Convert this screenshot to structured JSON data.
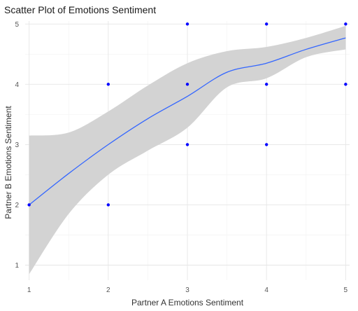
{
  "chart_data": {
    "type": "scatter",
    "title": "Scatter Plot of Emotions Sentiment",
    "xlabel": "Partner A Emotions Sentiment",
    "ylabel": "Partner B Emotions Sentiment",
    "xlim": [
      0.95,
      5.05
    ],
    "ylim": [
      0.75,
      5.05
    ],
    "x_ticks": [
      1,
      2,
      3,
      4,
      5
    ],
    "y_ticks": [
      1,
      2,
      3,
      4,
      5
    ],
    "x_tick_labels": [
      "1",
      "2",
      "3",
      "4",
      "5"
    ],
    "y_tick_labels": [
      "1",
      "2",
      "3",
      "4",
      "5"
    ],
    "grid": true,
    "points": [
      {
        "x": 1,
        "y": 2
      },
      {
        "x": 2,
        "y": 2
      },
      {
        "x": 2,
        "y": 4
      },
      {
        "x": 3,
        "y": 3
      },
      {
        "x": 3,
        "y": 4
      },
      {
        "x": 3,
        "y": 5
      },
      {
        "x": 4,
        "y": 3
      },
      {
        "x": 4,
        "y": 4
      },
      {
        "x": 4,
        "y": 5
      },
      {
        "x": 5,
        "y": 4
      },
      {
        "x": 5,
        "y": 5
      }
    ],
    "smooth_fit": {
      "x": [
        1.0,
        1.5,
        2.0,
        2.5,
        3.0,
        3.5,
        4.0,
        4.5,
        5.0
      ],
      "y": [
        2.0,
        2.52,
        3.0,
        3.43,
        3.8,
        4.2,
        4.35,
        4.58,
        4.77
      ],
      "lower": [
        0.85,
        1.85,
        2.5,
        2.9,
        3.28,
        3.95,
        4.1,
        4.45,
        4.58
      ],
      "upper": [
        3.15,
        3.2,
        3.55,
        3.98,
        4.35,
        4.55,
        4.62,
        4.77,
        4.97
      ]
    },
    "colors": {
      "points": "#0000ff",
      "fit_line": "#3366ff",
      "ribbon": "#d3d3d3",
      "background": "#ffffff"
    }
  }
}
